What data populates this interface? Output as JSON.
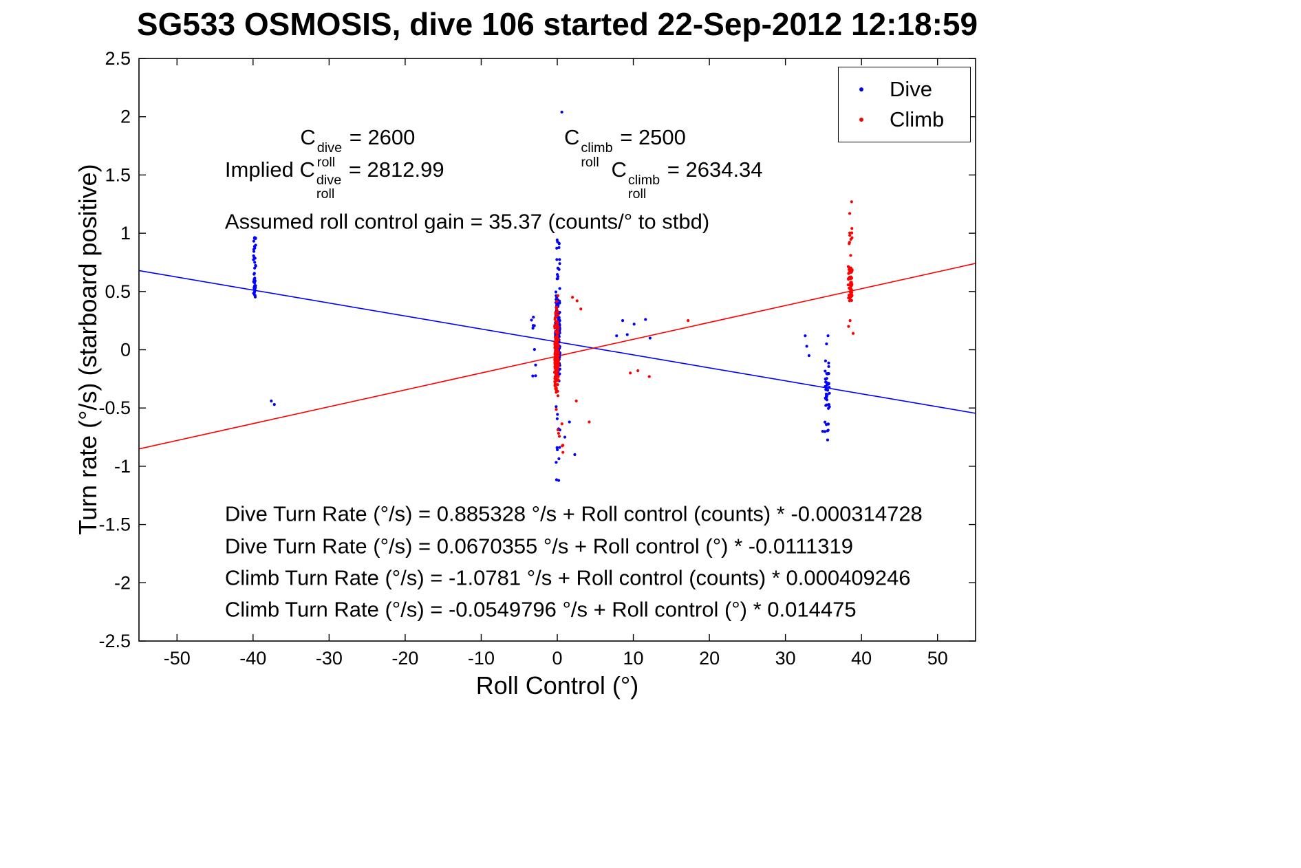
{
  "title": "SG533 OSMOSIS, dive 106 started 22-Sep-2012 12:18:59",
  "chart_data": {
    "type": "scatter",
    "xlabel": "Roll Control (°)",
    "ylabel": "Turn rate (°/s) (starboard positive)",
    "xlim": [
      -55,
      55
    ],
    "ylim": [
      -2.5,
      2.5
    ],
    "xticks": [
      -50,
      -40,
      -30,
      -20,
      -10,
      0,
      10,
      20,
      30,
      40,
      50
    ],
    "xtick_labels": [
      "-50",
      "-40",
      "-30",
      "-20",
      "-10",
      "0",
      "10",
      "20",
      "30",
      "40",
      "50"
    ],
    "yticks": [
      2.5,
      2,
      1.5,
      1,
      0.5,
      0,
      -0.5,
      -1,
      -1.5,
      -2,
      -2.5
    ],
    "ytick_labels": [
      "2.5",
      "2",
      "1.5",
      "1",
      "0.5",
      "0",
      "-0.5",
      "-1",
      "-1.5",
      "-2",
      "-2.5"
    ],
    "grid": false,
    "legend": {
      "position": "top-right",
      "entries": [
        {
          "label": "Dive",
          "color": "#0000ff"
        },
        {
          "label": "Climb",
          "color": "#ff0000"
        }
      ]
    },
    "series": [
      {
        "name": "Dive",
        "color": "#0000ff",
        "clusters": [
          {
            "x": -39.8,
            "dx": 0.15,
            "n": 38,
            "ymin": 0.42,
            "ymax": 0.97,
            "dist": "uniform"
          },
          {
            "x": -39.8,
            "dx": 0.1,
            "n": 10,
            "ymin": 0.5,
            "ymax": 0.62,
            "dist": "uniform"
          },
          {
            "x": -3.1,
            "dx": 0.3,
            "n": 9,
            "ymin": -0.27,
            "ymax": 0.3,
            "dist": "uniform"
          },
          {
            "x": 0.05,
            "dx": 0.3,
            "n": 150,
            "ymin": -0.32,
            "ymax": 0.6,
            "dist": "center"
          },
          {
            "x": 0.05,
            "dx": 0.35,
            "n": 30,
            "ymin": -0.15,
            "ymax": 0.35,
            "dist": "center"
          },
          {
            "x": 0.1,
            "dx": 0.25,
            "n": 16,
            "ymin": 0.6,
            "ymax": 0.95,
            "dist": "uniform"
          },
          {
            "x": 0.15,
            "dx": 0.3,
            "n": 12,
            "ymin": -1.15,
            "ymax": -0.4,
            "dist": "uniform"
          },
          {
            "x": 35.5,
            "dx": 0.3,
            "n": 40,
            "ymin": -0.55,
            "ymax": -0.08,
            "dist": "center"
          },
          {
            "x": 35.45,
            "dx": 0.25,
            "n": 8,
            "ymin": -0.97,
            "ymax": -0.58,
            "dist": "uniform"
          }
        ],
        "points": [
          [
            -37.6,
            -0.44
          ],
          [
            -37.2,
            -0.47
          ],
          [
            0.6,
            2.04
          ],
          [
            8.6,
            0.25
          ],
          [
            9.2,
            0.13
          ],
          [
            10.1,
            0.22
          ],
          [
            11.6,
            0.26
          ],
          [
            12.2,
            0.1
          ],
          [
            7.8,
            0.12
          ],
          [
            1.6,
            -0.62
          ],
          [
            2.3,
            -0.9
          ],
          [
            1.0,
            -0.75
          ],
          [
            32.6,
            0.12
          ],
          [
            32.8,
            0.03
          ],
          [
            33.1,
            -0.05
          ],
          [
            35.6,
            0.12
          ],
          [
            35.4,
            0.05
          ],
          [
            34.9,
            -0.7
          ]
        ]
      },
      {
        "name": "Climb",
        "color": "#ff0000",
        "clusters": [
          {
            "x": -0.1,
            "dx": 0.25,
            "n": 160,
            "ymin": -0.45,
            "ymax": 0.3,
            "dist": "center"
          },
          {
            "x": -0.05,
            "dx": 0.2,
            "n": 25,
            "ymin": -0.25,
            "ymax": 0.1,
            "dist": "center"
          },
          {
            "x": -0.05,
            "dx": 0.2,
            "n": 10,
            "ymin": 0.28,
            "ymax": 0.55,
            "dist": "uniform"
          },
          {
            "x": 0.3,
            "dx": 0.45,
            "n": 8,
            "ymin": -0.92,
            "ymax": -0.5,
            "dist": "uniform"
          },
          {
            "x": 38.5,
            "dx": 0.28,
            "n": 48,
            "ymin": 0.38,
            "ymax": 0.78,
            "dist": "center"
          },
          {
            "x": 38.55,
            "dx": 0.22,
            "n": 9,
            "ymin": 0.78,
            "ymax": 1.08,
            "dist": "uniform"
          }
        ],
        "points": [
          [
            2.6,
            0.42
          ],
          [
            3.1,
            0.35
          ],
          [
            2.0,
            0.45
          ],
          [
            2.5,
            -0.44
          ],
          [
            9.6,
            -0.2
          ],
          [
            12.1,
            -0.23
          ],
          [
            17.2,
            0.25
          ],
          [
            10.6,
            -0.18
          ],
          [
            38.7,
            1.27
          ],
          [
            38.45,
            1.17
          ],
          [
            38.5,
            0.25
          ],
          [
            38.3,
            0.2
          ],
          [
            38.9,
            0.14
          ],
          [
            4.2,
            -0.62
          ]
        ]
      }
    ],
    "fits": [
      {
        "name": "Dive fit",
        "color": "#0000ff",
        "intercept": 0.0670355,
        "slope": -0.0111319
      },
      {
        "name": "Climb fit",
        "color": "#ff0000",
        "intercept": -0.0549796,
        "slope": 0.014475
      }
    ],
    "annotations": {
      "coeff_lines": [
        {
          "x": -33.8,
          "y": 1.73,
          "segments": [
            {
              "t": "C"
            },
            {
              "sup": "dive",
              "sub": "roll"
            },
            {
              "t": " = 2600"
            }
          ]
        },
        {
          "x": 0.9,
          "y": 1.73,
          "segments": [
            {
              "t": "C"
            },
            {
              "sup": "climb",
              "sub": "roll"
            },
            {
              "t": " = 2500"
            }
          ]
        },
        {
          "x": -43.7,
          "y": 1.455,
          "segments": [
            {
              "t": "Implied C"
            },
            {
              "sup": "dive",
              "sub": "roll"
            },
            {
              "t": " = 2812.99"
            }
          ]
        },
        {
          "x": 7.1,
          "y": 1.455,
          "segments": [
            {
              "t": "C"
            },
            {
              "sup": "climb",
              "sub": "roll"
            },
            {
              "t": " = 2634.34"
            }
          ]
        },
        {
          "x": -43.7,
          "y": 1.095,
          "segments": [
            {
              "t": "Assumed roll control gain = 35.37 (counts/° to stbd)"
            }
          ]
        }
      ],
      "equation_lines": [
        {
          "x": -43.7,
          "y": -1.414,
          "text": "Dive Turn Rate (°/s) = 0.885328 °/s + Roll control (counts) * -0.000314728"
        },
        {
          "x": -43.7,
          "y": -1.69,
          "text": "Dive Turn Rate (°/s) = 0.0670355 °/s + Roll control (°) * -0.0111319"
        },
        {
          "x": -43.7,
          "y": -1.963,
          "text": "Climb Turn Rate (°/s) = -1.0781 °/s + Roll control (counts) * 0.000409246"
        },
        {
          "x": -43.7,
          "y": -2.234,
          "text": "Climb Turn Rate (°/s) = -0.0549796 °/s + Roll control (°) * 0.014475"
        }
      ]
    }
  }
}
